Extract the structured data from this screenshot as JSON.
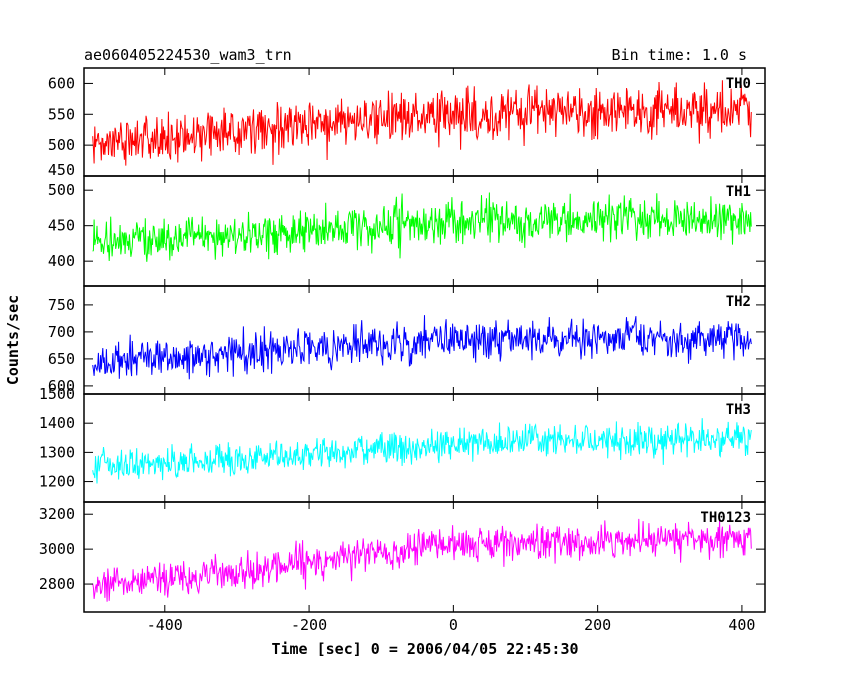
{
  "header": {
    "title": "ae060405224530_wam3_trn",
    "bin_time": "Bin time: 1.0 s"
  },
  "chart_data": {
    "type": "line",
    "xlabel": "Time [sec] 0 = 2006/04/05 22:45:30",
    "ylabel": "Counts/sec",
    "xlim": [
      -512,
      432
    ],
    "x_range": [
      -500,
      413
    ],
    "x_ticks": [
      -400,
      -200,
      0,
      200,
      400
    ],
    "grid": false,
    "panels": [
      {
        "name": "TH0",
        "color": "#ff0000",
        "ylim": [
          450,
          625
        ],
        "y_ticks": [
          450,
          500,
          550,
          600
        ],
        "trend": [
          [
            -500,
            505
          ],
          [
            -300,
            520
          ],
          [
            0,
            550
          ],
          [
            413,
            558
          ]
        ],
        "noise": 38
      },
      {
        "name": "TH1",
        "color": "#00ff00",
        "ylim": [
          365,
          520
        ],
        "y_ticks": [
          400,
          450,
          500
        ],
        "trend": [
          [
            -500,
            425
          ],
          [
            -300,
            438
          ],
          [
            0,
            455
          ],
          [
            413,
            460
          ]
        ],
        "noise": 28
      },
      {
        "name": "TH2",
        "color": "#0000ff",
        "ylim": [
          585,
          785
        ],
        "y_ticks": [
          600,
          650,
          700,
          750
        ],
        "trend": [
          [
            -500,
            640
          ],
          [
            -300,
            660
          ],
          [
            0,
            688
          ],
          [
            413,
            688
          ]
        ],
        "noise": 34
      },
      {
        "name": "TH3",
        "color": "#00ffff",
        "ylim": [
          1130,
          1500
        ],
        "y_ticks": [
          1200,
          1300,
          1400,
          1500
        ],
        "trend": [
          [
            -500,
            1255
          ],
          [
            -300,
            1275
          ],
          [
            0,
            1330
          ],
          [
            413,
            1345
          ]
        ],
        "noise": 52
      },
      {
        "name": "TH0123",
        "color": "#ff00ff",
        "ylim": [
          2640,
          3270
        ],
        "y_ticks": [
          2800,
          3000,
          3200
        ],
        "trend": [
          [
            -500,
            2780
          ],
          [
            -300,
            2870
          ],
          [
            0,
            3030
          ],
          [
            413,
            3060
          ]
        ],
        "noise": 90
      }
    ]
  }
}
